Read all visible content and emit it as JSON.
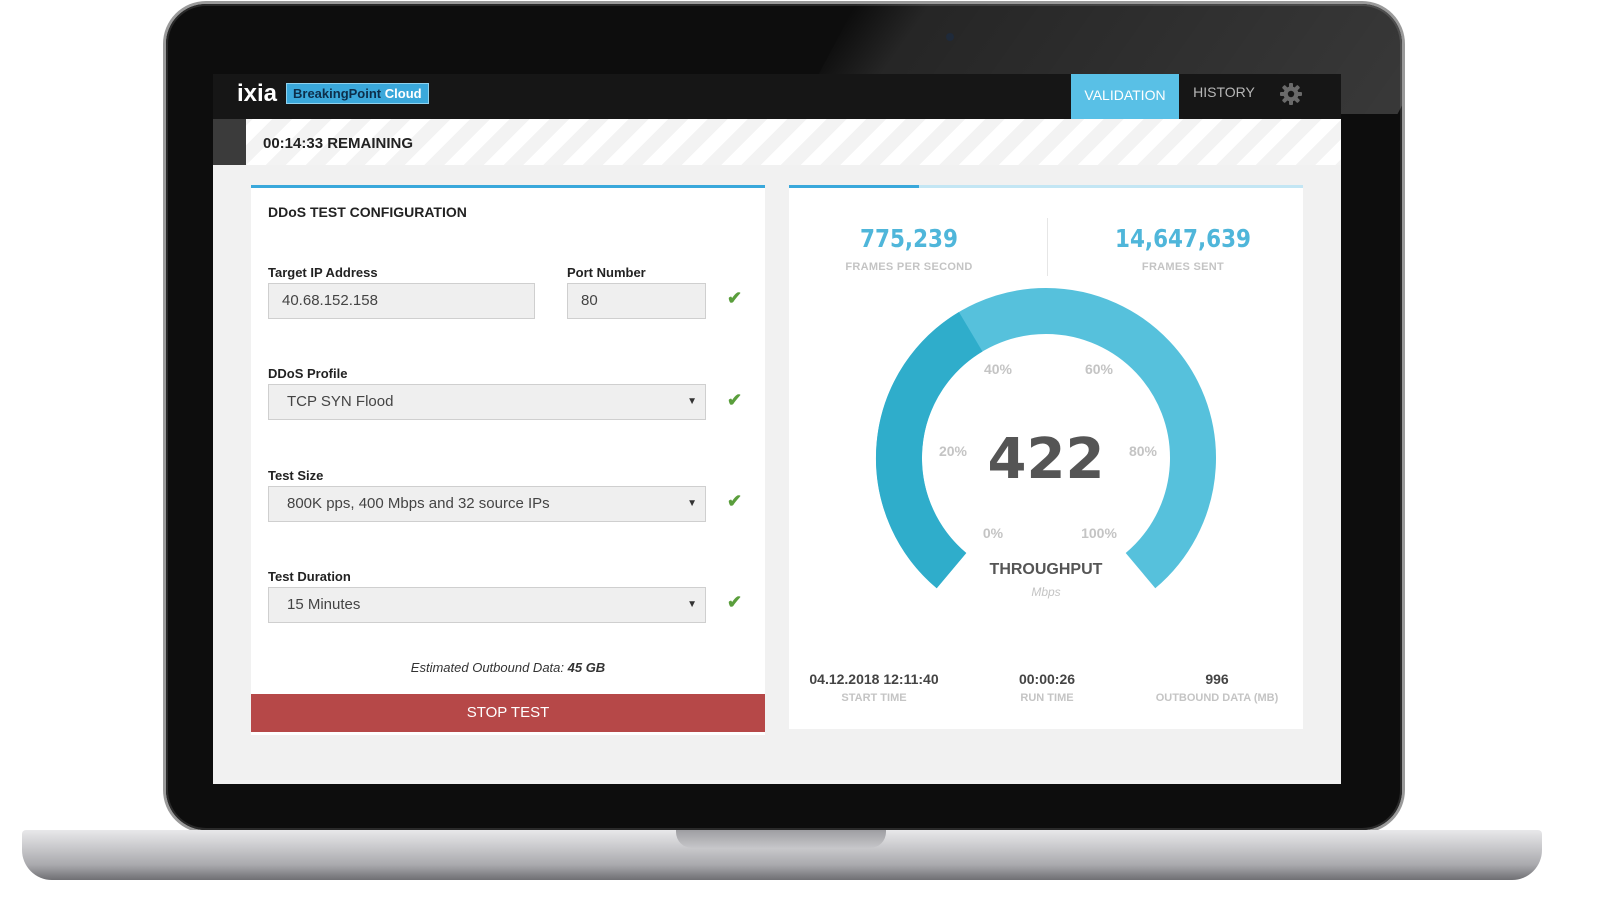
{
  "header": {
    "logo": "ixia",
    "product_name": "BreakingPoint",
    "product_suffix": "Cloud",
    "nav": {
      "validation": "VALIDATION",
      "history": "HISTORY"
    },
    "settings_icon": "gear-icon"
  },
  "status": {
    "remaining": "00:14:33 REMAINING"
  },
  "config": {
    "title": "DDoS TEST CONFIGURATION",
    "target_ip": {
      "label": "Target IP Address",
      "value": "40.68.152.158"
    },
    "port": {
      "label": "Port Number",
      "value": "80"
    },
    "profile": {
      "label": "DDoS Profile",
      "value": "TCP SYN Flood"
    },
    "size": {
      "label": "Test Size",
      "value": "800K pps, 400 Mbps and 32 source IPs"
    },
    "duration": {
      "label": "Test Duration",
      "value": "15 Minutes"
    },
    "estimate": {
      "label": "Estimated Outbound Data:",
      "value": "45 GB"
    },
    "stop_button": "STOP TEST",
    "valid_icon": "checkmark-icon",
    "valid_color": "#5a9e3c"
  },
  "stats": {
    "frames_per_second": {
      "value": "775,239",
      "label": "FRAMES PER SECOND"
    },
    "frames_sent": {
      "value": "14,647,639",
      "label": "FRAMES SENT"
    },
    "gauge": {
      "value": "422",
      "title": "THROUGHPUT",
      "unit": "Mbps",
      "fill_fraction": 0.75,
      "ticks": [
        "0%",
        "20%",
        "40%",
        "60%",
        "80%",
        "100%"
      ],
      "color": "#3aa8db"
    },
    "start_time": {
      "value": "04.12.2018 12:11:40",
      "label": "START TIME"
    },
    "run_time": {
      "value": "00:00:26",
      "label": "RUN TIME"
    },
    "outbound_data": {
      "value": "996",
      "label": "OUTBOUND DATA (MB)"
    }
  }
}
